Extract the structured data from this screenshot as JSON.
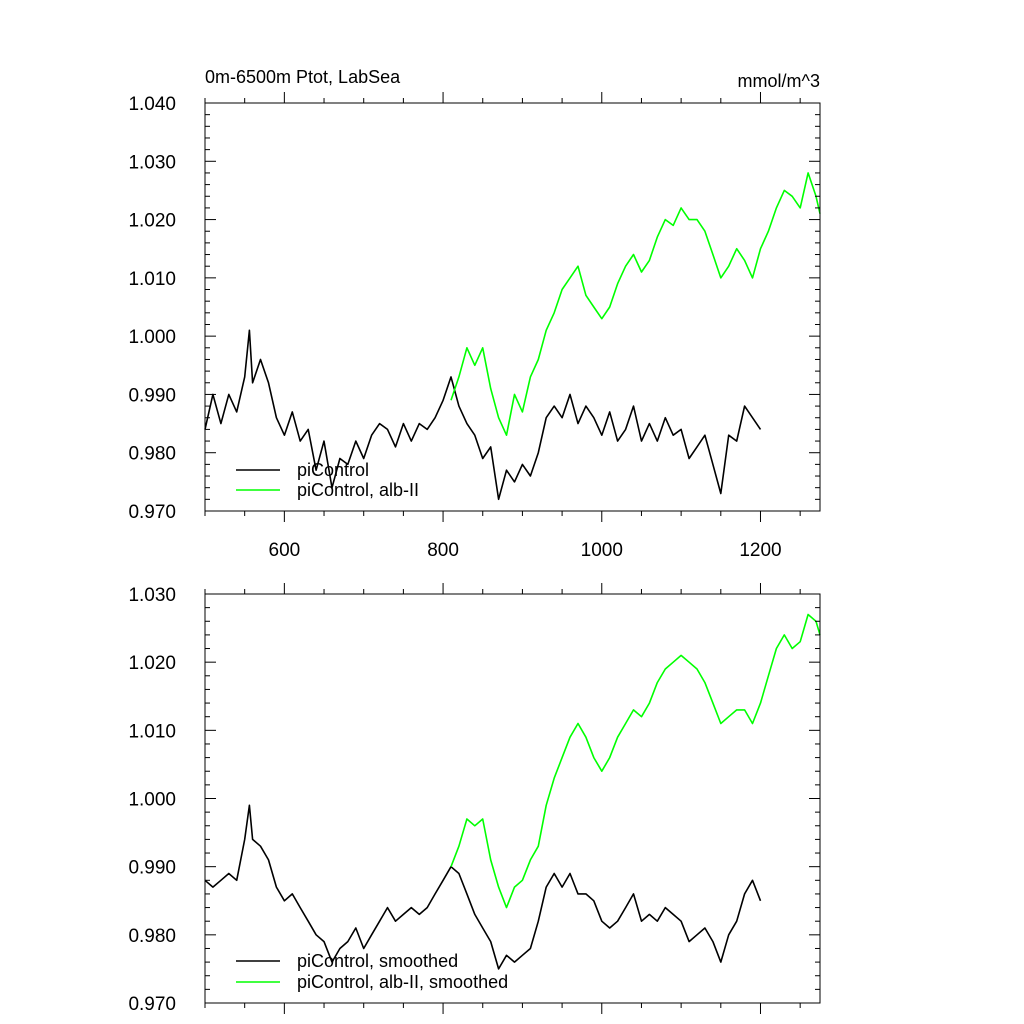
{
  "chart_data": [
    {
      "type": "line",
      "title_left": "0m-6500m Ptot, LabSea",
      "title_right": "mmol/m^3",
      "xlim": [
        500,
        1275
      ],
      "ylim": [
        0.97,
        1.04
      ],
      "x_ticks": [
        600,
        800,
        1000,
        1200
      ],
      "x_tick_labels": [
        "600",
        "800",
        "1000",
        "1200"
      ],
      "y_ticks": [
        0.97,
        0.98,
        0.99,
        1.0,
        1.01,
        1.02,
        1.03,
        1.04
      ],
      "y_tick_labels": [
        "0.970",
        "0.980",
        "0.990",
        "1.000",
        "1.010",
        "1.020",
        "1.030",
        "1.040"
      ],
      "grid": false,
      "legend_position": "bottom-left",
      "series": [
        {
          "name": "piControl",
          "color": "#000000",
          "x": [
            500,
            510,
            520,
            530,
            540,
            550,
            556,
            560,
            570,
            580,
            590,
            600,
            610,
            620,
            630,
            640,
            650,
            660,
            670,
            680,
            690,
            700,
            710,
            720,
            730,
            740,
            750,
            760,
            770,
            780,
            790,
            800,
            810,
            820,
            830,
            840,
            850,
            860,
            870,
            880,
            890,
            900,
            910,
            920,
            930,
            940,
            950,
            960,
            970,
            980,
            990,
            1000,
            1010,
            1020,
            1030,
            1040,
            1050,
            1060,
            1070,
            1080,
            1090,
            1100,
            1110,
            1120,
            1130,
            1140,
            1150,
            1160,
            1170,
            1180,
            1190,
            1200
          ],
          "y": [
            0.984,
            0.99,
            0.985,
            0.99,
            0.987,
            0.993,
            1.001,
            0.992,
            0.996,
            0.992,
            0.986,
            0.983,
            0.987,
            0.982,
            0.984,
            0.977,
            0.982,
            0.974,
            0.979,
            0.978,
            0.982,
            0.979,
            0.983,
            0.985,
            0.984,
            0.981,
            0.985,
            0.982,
            0.985,
            0.984,
            0.986,
            0.989,
            0.993,
            0.988,
            0.985,
            0.983,
            0.979,
            0.981,
            0.972,
            0.977,
            0.975,
            0.978,
            0.976,
            0.98,
            0.986,
            0.988,
            0.986,
            0.99,
            0.985,
            0.988,
            0.986,
            0.983,
            0.987,
            0.982,
            0.984,
            0.988,
            0.982,
            0.985,
            0.982,
            0.986,
            0.983,
            0.984,
            0.979,
            0.981,
            0.983,
            0.978,
            0.973,
            0.983,
            0.982,
            0.988,
            0.986,
            0.984
          ]
        },
        {
          "name": "piControl, alb-II",
          "color": "#00ff00",
          "x": [
            810,
            820,
            830,
            840,
            850,
            860,
            870,
            880,
            890,
            900,
            910,
            920,
            930,
            940,
            950,
            960,
            970,
            980,
            990,
            1000,
            1010,
            1020,
            1030,
            1040,
            1050,
            1060,
            1070,
            1080,
            1090,
            1100,
            1110,
            1120,
            1130,
            1140,
            1150,
            1160,
            1170,
            1180,
            1190,
            1200,
            1210,
            1220,
            1230,
            1240,
            1250,
            1260,
            1270,
            1275
          ],
          "y": [
            0.989,
            0.993,
            0.998,
            0.995,
            0.998,
            0.991,
            0.986,
            0.983,
            0.99,
            0.987,
            0.993,
            0.996,
            1.001,
            1.004,
            1.008,
            1.01,
            1.012,
            1.007,
            1.005,
            1.003,
            1.005,
            1.009,
            1.012,
            1.014,
            1.011,
            1.013,
            1.017,
            1.02,
            1.019,
            1.022,
            1.02,
            1.02,
            1.018,
            1.014,
            1.01,
            1.012,
            1.015,
            1.013,
            1.01,
            1.015,
            1.018,
            1.022,
            1.025,
            1.024,
            1.022,
            1.028,
            1.024,
            1.021
          ]
        }
      ]
    },
    {
      "type": "line",
      "xlim": [
        500,
        1275
      ],
      "ylim": [
        0.97,
        1.03
      ],
      "x_ticks": [
        600,
        800,
        1000,
        1200
      ],
      "y_ticks": [
        0.97,
        0.98,
        0.99,
        1.0,
        1.01,
        1.02,
        1.03
      ],
      "y_tick_labels": [
        "0.970",
        "0.980",
        "0.990",
        "1.000",
        "1.010",
        "1.020",
        "1.030"
      ],
      "grid": false,
      "legend_position": "bottom-left",
      "series": [
        {
          "name": "piControl, smoothed",
          "color": "#000000",
          "x": [
            500,
            510,
            520,
            530,
            540,
            550,
            556,
            560,
            570,
            580,
            590,
            600,
            610,
            620,
            630,
            640,
            650,
            660,
            670,
            680,
            690,
            700,
            710,
            720,
            730,
            740,
            750,
            760,
            770,
            780,
            790,
            800,
            810,
            820,
            830,
            840,
            850,
            860,
            870,
            880,
            890,
            900,
            910,
            920,
            930,
            940,
            950,
            960,
            970,
            980,
            990,
            1000,
            1010,
            1020,
            1030,
            1040,
            1050,
            1060,
            1070,
            1080,
            1090,
            1100,
            1110,
            1120,
            1130,
            1140,
            1150,
            1160,
            1170,
            1180,
            1190,
            1200
          ],
          "y": [
            0.988,
            0.987,
            0.988,
            0.989,
            0.988,
            0.994,
            0.999,
            0.994,
            0.993,
            0.991,
            0.987,
            0.985,
            0.986,
            0.984,
            0.982,
            0.98,
            0.979,
            0.976,
            0.978,
            0.979,
            0.981,
            0.978,
            0.98,
            0.982,
            0.984,
            0.982,
            0.983,
            0.984,
            0.983,
            0.984,
            0.986,
            0.988,
            0.99,
            0.989,
            0.986,
            0.983,
            0.981,
            0.979,
            0.975,
            0.977,
            0.976,
            0.977,
            0.978,
            0.982,
            0.987,
            0.989,
            0.987,
            0.989,
            0.986,
            0.986,
            0.985,
            0.982,
            0.981,
            0.982,
            0.984,
            0.986,
            0.982,
            0.983,
            0.982,
            0.984,
            0.983,
            0.982,
            0.979,
            0.98,
            0.981,
            0.979,
            0.976,
            0.98,
            0.982,
            0.986,
            0.988,
            0.985
          ]
        },
        {
          "name": "piControl, alb-II, smoothed",
          "color": "#00ff00",
          "x": [
            810,
            820,
            830,
            840,
            850,
            860,
            870,
            880,
            890,
            900,
            910,
            920,
            930,
            940,
            950,
            960,
            970,
            980,
            990,
            1000,
            1010,
            1020,
            1030,
            1040,
            1050,
            1060,
            1070,
            1080,
            1090,
            1100,
            1110,
            1120,
            1130,
            1140,
            1150,
            1160,
            1170,
            1180,
            1190,
            1200,
            1210,
            1220,
            1230,
            1240,
            1250,
            1260,
            1270,
            1275
          ],
          "y": [
            0.99,
            0.993,
            0.997,
            0.996,
            0.997,
            0.991,
            0.987,
            0.984,
            0.987,
            0.988,
            0.991,
            0.993,
            0.999,
            1.003,
            1.006,
            1.009,
            1.011,
            1.009,
            1.006,
            1.004,
            1.006,
            1.009,
            1.011,
            1.013,
            1.012,
            1.014,
            1.017,
            1.019,
            1.02,
            1.021,
            1.02,
            1.019,
            1.017,
            1.014,
            1.011,
            1.012,
            1.013,
            1.013,
            1.011,
            1.014,
            1.018,
            1.022,
            1.024,
            1.022,
            1.023,
            1.027,
            1.026,
            1.024
          ]
        }
      ]
    }
  ]
}
